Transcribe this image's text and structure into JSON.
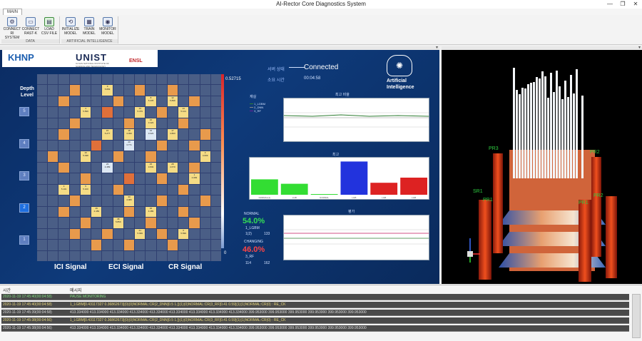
{
  "window": {
    "title": "AI-Rector Core Diagnostics System",
    "minimize": "—",
    "maximize": "❐",
    "close": "✕"
  },
  "ribbon": {
    "tab": "MAIN",
    "groups": [
      {
        "name": "DATA",
        "buttons": [
          {
            "label": "CONNECT\nRI SYSTEM",
            "icon": "settings-gear-icon"
          },
          {
            "label": "CONNECT\nRAST-K",
            "icon": "laptop-icon"
          },
          {
            "label": "LOAD\nCSV FILE",
            "icon": "csv-file-icon"
          }
        ]
      },
      {
        "name": "ARTIFICIAL INTELLIGENCE",
        "buttons": [
          {
            "label": "INITIALIZE\nMODEL",
            "icon": "initialize-icon"
          },
          {
            "label": "TRAIN\nMODEL",
            "icon": "train-icon"
          },
          {
            "label": "MONITOR\nMODEL",
            "icon": "monitor-brain-icon"
          }
        ]
      }
    ]
  },
  "logos": {
    "khnp": "KHNP",
    "unist": "UNIST",
    "unist_sub": "ULSAN NATIONAL INSTITUTE OF SCIENCE AND TECHNOLOGY",
    "ensl": "ENSL"
  },
  "depth": {
    "title": "Depth Level",
    "levels": [
      "5",
      "4",
      "3",
      "2",
      "1"
    ],
    "selected": "2"
  },
  "grid": {
    "scale_max": "0.52715",
    "scale_min": "0",
    "cells": [
      {
        "r": 1,
        "c": 6,
        "v": "9\n5.899",
        "k": "y"
      },
      {
        "r": 2,
        "c": 10,
        "v": "8\n5.378",
        "k": "y"
      },
      {
        "r": 2,
        "c": 12,
        "v": "12\n5.899",
        "k": "y"
      },
      {
        "r": 3,
        "c": 4,
        "v": "4\n5.899",
        "k": "y"
      },
      {
        "r": 3,
        "c": 9,
        "v": "19\n5.379",
        "k": "y"
      },
      {
        "r": 3,
        "c": 13,
        "v": "13\n5.101",
        "k": "y"
      },
      {
        "r": 4,
        "c": 10,
        "v": "10\n3.423",
        "k": "y"
      },
      {
        "r": 5,
        "c": 6,
        "v": "15\n5.277",
        "k": "y"
      },
      {
        "r": 5,
        "c": 8,
        "v": "18\n4.099",
        "k": "y"
      },
      {
        "r": 5,
        "c": 10,
        "v": "16\n3.623",
        "k": "w"
      },
      {
        "r": 5,
        "c": 12,
        "v": "17\n4.803",
        "k": "y"
      },
      {
        "r": 6,
        "c": 8,
        "v": "20\n3.771",
        "k": "w"
      },
      {
        "r": 7,
        "c": 4,
        "v": "19\n5.098",
        "k": "y"
      },
      {
        "r": 7,
        "c": 15,
        "v": "3\n4.099",
        "k": "y"
      },
      {
        "r": 8,
        "c": 6,
        "v": "23\n4.489",
        "k": "w"
      },
      {
        "r": 8,
        "c": 10,
        "v": "25\n3.849",
        "k": "y"
      },
      {
        "r": 8,
        "c": 12,
        "v": "28\n4.670",
        "k": "y"
      },
      {
        "r": 9,
        "c": 14,
        "v": "1\n4.099",
        "k": "y"
      },
      {
        "r": 10,
        "c": 2,
        "v": "4\n5.101",
        "k": "y"
      },
      {
        "r": 10,
        "c": 4,
        "v": "5\n5.100",
        "k": "y"
      },
      {
        "r": 11,
        "c": 8,
        "v": "33\n4.080",
        "k": "y"
      },
      {
        "r": 12,
        "c": 5,
        "v": "35\n4.489",
        "k": "y"
      },
      {
        "r": 12,
        "c": 10,
        "v": "36\n4.489",
        "k": "y"
      },
      {
        "r": 13,
        "c": 7,
        "v": "38\n5.859",
        "k": "y"
      },
      {
        "r": 14,
        "c": 9,
        "v": "41\n5.999",
        "k": "y"
      },
      {
        "r": 14,
        "c": 13,
        "v": "6\n5.899",
        "k": "y"
      },
      {
        "r": 1,
        "c": 3,
        "v": "",
        "k": "o"
      },
      {
        "r": 1,
        "c": 9,
        "v": "",
        "k": "o"
      },
      {
        "r": 1,
        "c": 12,
        "v": "",
        "k": "o"
      },
      {
        "r": 2,
        "c": 2,
        "v": "",
        "k": "o"
      },
      {
        "r": 2,
        "c": 7,
        "v": "",
        "k": "o"
      },
      {
        "r": 2,
        "c": 14,
        "v": "",
        "k": "o"
      },
      {
        "r": 3,
        "c": 6,
        "v": "",
        "k": "r"
      },
      {
        "r": 3,
        "c": 11,
        "v": "",
        "k": "o"
      },
      {
        "r": 4,
        "c": 3,
        "v": "",
        "k": "o"
      },
      {
        "r": 4,
        "c": 8,
        "v": "",
        "k": "o"
      },
      {
        "r": 4,
        "c": 13,
        "v": "",
        "k": "o"
      },
      {
        "r": 5,
        "c": 2,
        "v": "",
        "k": "o"
      },
      {
        "r": 5,
        "c": 15,
        "v": "",
        "k": "o"
      },
      {
        "r": 6,
        "c": 5,
        "v": "",
        "k": "r"
      },
      {
        "r": 6,
        "c": 11,
        "v": "",
        "k": "o"
      },
      {
        "r": 6,
        "c": 14,
        "v": "",
        "k": "o"
      },
      {
        "r": 7,
        "c": 1,
        "v": "",
        "k": "o"
      },
      {
        "r": 7,
        "c": 7,
        "v": "",
        "k": "o"
      },
      {
        "r": 7,
        "c": 10,
        "v": "",
        "k": "o"
      },
      {
        "r": 8,
        "c": 2,
        "v": "",
        "k": "o"
      },
      {
        "r": 8,
        "c": 14,
        "v": "",
        "k": "o"
      },
      {
        "r": 9,
        "c": 4,
        "v": "",
        "k": "o"
      },
      {
        "r": 9,
        "c": 8,
        "v": "",
        "k": "r"
      },
      {
        "r": 9,
        "c": 11,
        "v": "",
        "k": "o"
      },
      {
        "r": 10,
        "c": 7,
        "v": "",
        "k": "o"
      },
      {
        "r": 10,
        "c": 13,
        "v": "",
        "k": "o"
      },
      {
        "r": 11,
        "c": 3,
        "v": "",
        "k": "o"
      },
      {
        "r": 11,
        "c": 11,
        "v": "",
        "k": "o"
      },
      {
        "r": 11,
        "c": 15,
        "v": "",
        "k": "o"
      },
      {
        "r": 12,
        "c": 2,
        "v": "",
        "k": "o"
      },
      {
        "r": 12,
        "c": 8,
        "v": "",
        "k": "o"
      },
      {
        "r": 12,
        "c": 13,
        "v": "",
        "k": "o"
      },
      {
        "r": 13,
        "c": 4,
        "v": "",
        "k": "o"
      },
      {
        "r": 13,
        "c": 10,
        "v": "",
        "k": "o"
      },
      {
        "r": 13,
        "c": 14,
        "v": "",
        "k": "o"
      },
      {
        "r": 14,
        "c": 3,
        "v": "",
        "k": "o"
      },
      {
        "r": 14,
        "c": 6,
        "v": "",
        "k": "o"
      },
      {
        "r": 14,
        "c": 11,
        "v": "",
        "k": "o"
      },
      {
        "r": 15,
        "c": 5,
        "v": "",
        "k": "o"
      },
      {
        "r": 15,
        "c": 8,
        "v": "",
        "k": "o"
      },
      {
        "r": 15,
        "c": 12,
        "v": "",
        "k": "o"
      }
    ]
  },
  "signals": {
    "ici": "ICI Signal",
    "eci": "ECI Signal",
    "cr": "CR Signal"
  },
  "status": {
    "label1": "서버 상태",
    "label2": "소요 시간",
    "connected": "Connected",
    "elapsed": "00:04:58"
  },
  "ai": {
    "text1": "Artificial",
    "text2": "Intelligence"
  },
  "line_chart": {
    "header": "재실",
    "title": "최고 비율",
    "legend": [
      "1_LGBM",
      "2_DNN",
      "3_RF"
    ],
    "colors": [
      "#2e7d32",
      "#888888",
      "#6a1b9a"
    ]
  },
  "bar_chart": {
    "header": "최고",
    "values": [
      0.45,
      0.32,
      0.02,
      0.97,
      0.35,
      0.5
    ],
    "colors": [
      "#33dd33",
      "#33dd33",
      "#33dd33",
      "#2233dd",
      "#dd2222",
      "#dd2222"
    ],
    "labels": [
      "NORMAL(1)",
      "LGB",
      "NORMAL",
      "LGB",
      "LGB",
      "LGB"
    ]
  },
  "percent": {
    "normal_label": "NORMAL",
    "normal_value": "54.0%",
    "normal_model": "1_LGBM",
    "normal_nums": [
      "1(2)",
      "133"
    ],
    "warning_label": "CHANGING",
    "warning_value": "46.0%",
    "warning_model": "3_RF",
    "warning_nums": [
      "114",
      "162"
    ]
  },
  "bottom_chart": {
    "header": "평가"
  },
  "log": {
    "headers": [
      "시간",
      "메시지"
    ],
    "rows": [
      {
        "time": "2020-11-19 17:45:40(00:04:58)",
        "msg": "PAUSE MONITORING",
        "color": "#7ddc7d"
      },
      {
        "time": "2020-11-19 17:45:40(00:04:58)",
        "msg": "1_LGBM[0.43117327 0.36862673](0)(0)NORMAL:CR(2_DNN[0.5 1.])(1)(0)NORMAL:CR(3_RF[0.41 0.59](1)(1)NORMAL:CR(0) : RE_CK",
        "color": "#e8d77a"
      },
      {
        "time": "2020-11-19 17:45:39(00:04:58)",
        "msg": "413.334000 413.334000 413.334000 413.334000 413.334000 413.334000 413.334000 413.334000 413.334000 399.953000 399.953000 399.953000 399.953000 399.953000 399.953000",
        "color": "#dddddd"
      },
      {
        "time": "2020-11-19 17:45:38(00:04:56)",
        "msg": "1_LGBM[0.43117327 0.36862673](0)(0)NORMAL:CR(2_DNN[0.5 1.])(1)(0)NORMAL:CR(3_RF[0.41 0.59](1)(1)NORMAL:CR(0) : RE_CK",
        "color": "#e8d77a"
      },
      {
        "time": "2020-11-19 17:45:38(00:04:56)",
        "msg": "413.334000 413.334000 413.334000 413.334000 413.334000 413.334000 413.334000 413.334000 413.334000 399.953000 399.953000 399.953000 399.953000 399.953000 399.953000",
        "color": "#dddddd"
      }
    ]
  },
  "view3d": {
    "labels": [
      "PR3",
      "PR2",
      "SR1",
      "PR1",
      "PR1",
      "PR2"
    ]
  }
}
